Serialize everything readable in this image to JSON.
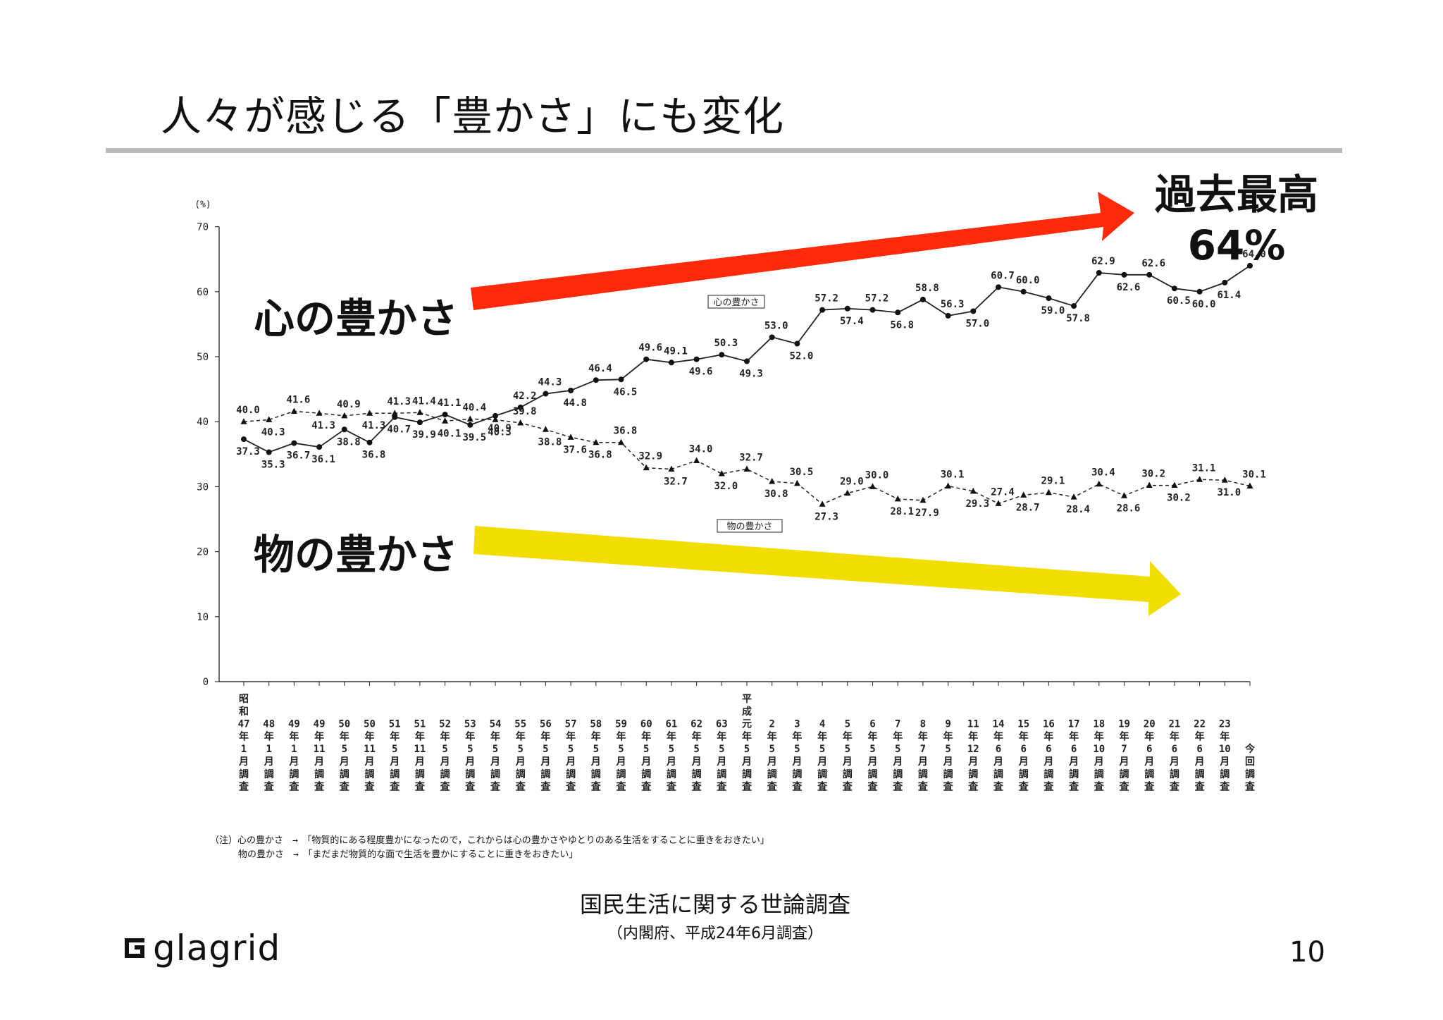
{
  "slide": {
    "title": "人々が感じる「豊かさ」にも変化",
    "page_number": "10",
    "logo_text": "glagrid"
  },
  "annotations": {
    "heart_label": "心の豊かさ",
    "goods_label": "物の豊かさ",
    "record_line1": "過去最高",
    "record_line2": "64%",
    "heart_arrow_color": "#ff2a0a",
    "goods_arrow_color": "#f2dd00"
  },
  "notes": {
    "line1": "（注）心の豊かさ　→　「物質的にある程度豊かになったので，これからは心の豊かさやゆとりのある生活をすることに重きをおきたい」",
    "line2": "物の豊かさ　→　「まだまだ物質的な面で生活を豊かにすることに重きをおきたい」"
  },
  "source": {
    "title": "国民生活に関する世論調査",
    "subtitle": "（内閣府、平成24年6月調査）"
  },
  "chart_data": {
    "type": "line",
    "ylabel": "(%)",
    "ylim": [
      0,
      70
    ],
    "yticks": [
      0,
      10,
      20,
      30,
      40,
      50,
      60,
      70
    ],
    "grid": false,
    "categories": [
      "昭和47年1月調査",
      "48年1月調査",
      "49年1月調査",
      "49年11月調査",
      "50年5月調査",
      "50年11月調査",
      "51年5月調査",
      "51年11月調査",
      "52年5月調査",
      "53年5月調査",
      "54年5月調査",
      "55年5月調査",
      "56年5月調査",
      "57年5月調査",
      "58年5月調査",
      "59年5月調査",
      "60年5月調査",
      "61年5月調査",
      "62年5月調査",
      "63年5月調査",
      "平成元年5月調査",
      "2年5月調査",
      "3年5月調査",
      "4年5月調査",
      "5年5月調査",
      "6年5月調査",
      "7年5月調査",
      "8年7月調査",
      "9年5月調査",
      "11年12月調査",
      "14年6月調査",
      "15年6月調査",
      "16年6月調査",
      "17年6月調査",
      "18年10月調査",
      "19年7月調査",
      "20年6月調査",
      "21年6月調査",
      "22年6月調査",
      "23年10月調査",
      "今回調査"
    ],
    "tick_labels": [
      [
        "昭",
        "和",
        "47",
        "年",
        "1",
        "月",
        "調",
        "査"
      ],
      [
        "48",
        "年",
        "1",
        "月",
        "調",
        "査"
      ],
      [
        "49",
        "年",
        "1",
        "月",
        "調",
        "査"
      ],
      [
        "49",
        "年",
        "11",
        "月",
        "調",
        "査"
      ],
      [
        "50",
        "年",
        "5",
        "月",
        "調",
        "査"
      ],
      [
        "50",
        "年",
        "11",
        "月",
        "調",
        "査"
      ],
      [
        "51",
        "年",
        "5",
        "月",
        "調",
        "査"
      ],
      [
        "51",
        "年",
        "11",
        "月",
        "調",
        "査"
      ],
      [
        "52",
        "年",
        "5",
        "月",
        "調",
        "査"
      ],
      [
        "53",
        "年",
        "5",
        "月",
        "調",
        "査"
      ],
      [
        "54",
        "年",
        "5",
        "月",
        "調",
        "査"
      ],
      [
        "55",
        "年",
        "5",
        "月",
        "調",
        "査"
      ],
      [
        "56",
        "年",
        "5",
        "月",
        "調",
        "査"
      ],
      [
        "57",
        "年",
        "5",
        "月",
        "調",
        "査"
      ],
      [
        "58",
        "年",
        "5",
        "月",
        "調",
        "査"
      ],
      [
        "59",
        "年",
        "5",
        "月",
        "調",
        "査"
      ],
      [
        "60",
        "年",
        "5",
        "月",
        "調",
        "査"
      ],
      [
        "61",
        "年",
        "5",
        "月",
        "調",
        "査"
      ],
      [
        "62",
        "年",
        "5",
        "月",
        "調",
        "査"
      ],
      [
        "63",
        "年",
        "5",
        "月",
        "調",
        "査"
      ],
      [
        "平",
        "成",
        "元",
        "年",
        "5",
        "月",
        "調",
        "査"
      ],
      [
        "2",
        "年",
        "5",
        "月",
        "調",
        "査"
      ],
      [
        "3",
        "年",
        "5",
        "月",
        "調",
        "査"
      ],
      [
        "4",
        "年",
        "5",
        "月",
        "調",
        "査"
      ],
      [
        "5",
        "年",
        "5",
        "月",
        "調",
        "査"
      ],
      [
        "6",
        "年",
        "5",
        "月",
        "調",
        "査"
      ],
      [
        "7",
        "年",
        "5",
        "月",
        "調",
        "査"
      ],
      [
        "8",
        "年",
        "7",
        "月",
        "調",
        "査"
      ],
      [
        "9",
        "年",
        "5",
        "月",
        "調",
        "査"
      ],
      [
        "11",
        "年",
        "12",
        "月",
        "調",
        "査"
      ],
      [
        "14",
        "年",
        "6",
        "月",
        "調",
        "査"
      ],
      [
        "15",
        "年",
        "6",
        "月",
        "調",
        "査"
      ],
      [
        "16",
        "年",
        "6",
        "月",
        "調",
        "査"
      ],
      [
        "17",
        "年",
        "6",
        "月",
        "調",
        "査"
      ],
      [
        "18",
        "年",
        "10",
        "月",
        "調",
        "査"
      ],
      [
        "19",
        "年",
        "7",
        "月",
        "調",
        "査"
      ],
      [
        "20",
        "年",
        "6",
        "月",
        "調",
        "査"
      ],
      [
        "21",
        "年",
        "6",
        "月",
        "調",
        "査"
      ],
      [
        "22",
        "年",
        "6",
        "月",
        "調",
        "査"
      ],
      [
        "23",
        "年",
        "10",
        "月",
        "調",
        "査"
      ],
      [
        "今",
        "回",
        "調",
        "査"
      ]
    ],
    "series": [
      {
        "name": "心の豊かさ",
        "line_style": "solid",
        "marker": "circle",
        "values": [
          37.3,
          35.3,
          36.7,
          36.1,
          38.8,
          36.8,
          40.7,
          39.9,
          41.1,
          39.5,
          40.9,
          42.2,
          44.3,
          44.8,
          46.4,
          46.5,
          49.6,
          49.1,
          49.6,
          50.3,
          49.3,
          53.0,
          52.0,
          57.2,
          57.4,
          57.2,
          56.8,
          58.8,
          56.3,
          57.0,
          60.7,
          60.0,
          59.0,
          57.8,
          62.9,
          62.6,
          62.6,
          60.5,
          60.0,
          61.4,
          64.0
        ],
        "labels": [
          "37.3",
          "35.3",
          "36.7",
          "36.1",
          "38.8",
          "36.8",
          "40.7",
          "39.9",
          "41.1",
          "39.5",
          "40.9",
          "42.2",
          "44.3",
          "44.8",
          "46.4",
          "46.5",
          "49.6",
          "49.1",
          "49.6",
          "50.3",
          "49.3",
          "53.0",
          "52.0",
          "57.2",
          "57.4",
          "57.2",
          "56.8",
          "58.8",
          "56.3",
          "57.0",
          "60.7",
          "60.0",
          "59.0",
          "57.8",
          "62.9",
          "62.6",
          "62.6",
          "60.5",
          "60.0",
          "61.4",
          "64.0"
        ]
      },
      {
        "name": "物の豊かさ",
        "line_style": "dashed",
        "marker": "triangle",
        "values": [
          40.0,
          40.3,
          41.6,
          41.3,
          40.9,
          41.3,
          41.3,
          41.4,
          40.1,
          40.4,
          40.3,
          39.8,
          38.8,
          37.6,
          36.8,
          36.8,
          32.9,
          32.7,
          34.0,
          32.0,
          32.7,
          30.8,
          30.5,
          27.3,
          29.0,
          30.0,
          28.1,
          27.9,
          30.1,
          29.3,
          27.4,
          28.7,
          29.1,
          28.4,
          30.4,
          28.6,
          30.2,
          30.2,
          31.1,
          31.0,
          30.1
        ],
        "labels": [
          "40.0",
          "40.3",
          "41.6",
          "41.3",
          "40.9",
          "41.3",
          "41.3",
          "41.4",
          "40.1",
          "40.4",
          "40.3",
          "39.8",
          "38.8",
          "37.6",
          "36.8",
          "36.8",
          "32.9",
          "32.7",
          "34.0",
          "32.0",
          "32.7",
          "30.8",
          "30.5",
          "27.3",
          "29.0",
          "30.0",
          "28.1",
          "27.9",
          "30.1",
          "29.3",
          "27.4",
          "28.7",
          "29.1",
          "28.4",
          "30.4",
          "28.6",
          "30.2",
          "30.2",
          "31.1",
          "31.0",
          "30.1"
        ]
      }
    ]
  }
}
